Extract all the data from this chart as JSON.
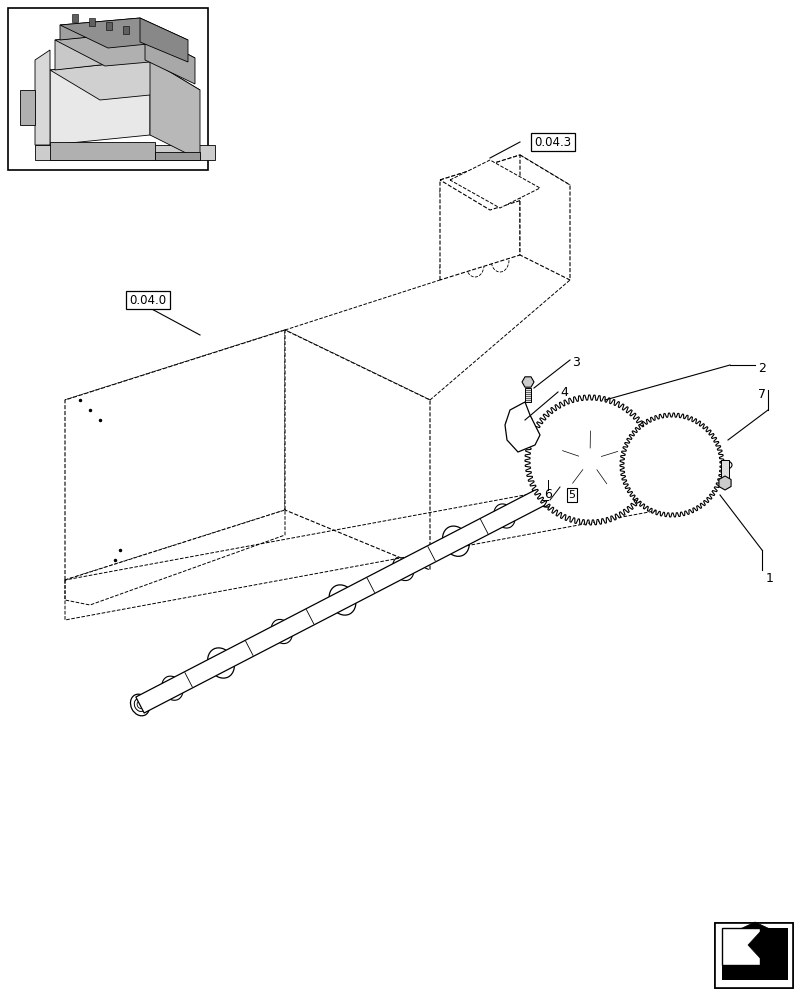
{
  "bg_color": "#ffffff",
  "line_color": "#000000",
  "figsize": [
    8.04,
    10.0
  ],
  "dpi": 100,
  "engine_block_label": "0.04.0",
  "timing_cover_label": "0.04.3",
  "label_fontsize": 8.5,
  "callout_fontsize": 9,
  "parts": [
    "1",
    "2",
    "3",
    "4",
    "5",
    "6",
    "7"
  ]
}
